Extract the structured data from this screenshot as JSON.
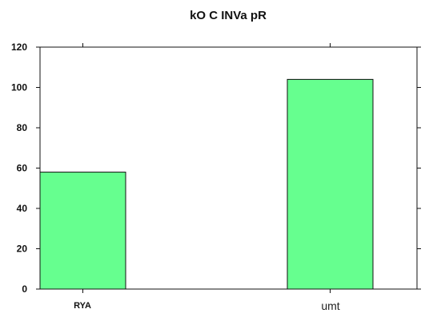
{
  "chart_data": {
    "type": "bar",
    "title": "kO C  INVa pR",
    "xlabel": "",
    "ylabel": "",
    "categories": [
      "RYA",
      "umt"
    ],
    "values": [
      58,
      104
    ],
    "ylim": [
      0,
      120
    ],
    "yticks": [
      0,
      20,
      40,
      60,
      80,
      100,
      120
    ],
    "bar_color": "#66ff8f",
    "edge_color": "#111111",
    "grid": false,
    "legend": "none"
  }
}
